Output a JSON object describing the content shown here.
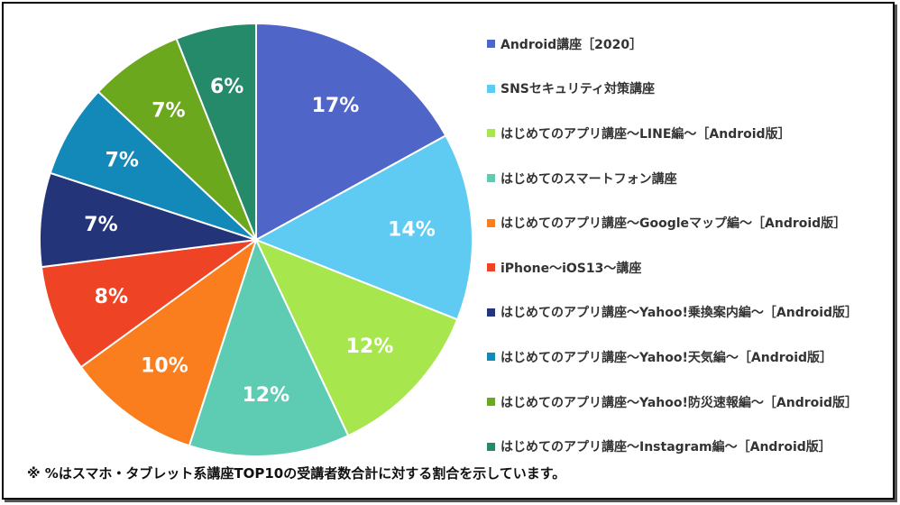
{
  "chart_data": {
    "type": "pie",
    "slices": [
      {
        "name": "Android講座［2020］",
        "value": 17,
        "label": "17%",
        "color": "#5065C8"
      },
      {
        "name": "SNSセキュリティ対策講座",
        "value": 14,
        "label": "14%",
        "color": "#5FCBF2"
      },
      {
        "name": "はじめてのアプリ講座～LINE編～［Android版］",
        "value": 12,
        "label": "12%",
        "color": "#A8E64E"
      },
      {
        "name": "はじめてのスマートフォン講座",
        "value": 12,
        "label": "12%",
        "color": "#5ECCB2"
      },
      {
        "name": "はじめてのアプリ講座～Googleマップ編～［Android版］",
        "value": 10,
        "label": "10%",
        "color": "#FA7D1E"
      },
      {
        "name": "iPhone～iOS13～講座",
        "value": 8,
        "label": "8%",
        "color": "#EE4325"
      },
      {
        "name": "はじめてのアプリ講座～Yahoo!乗換案内編～［Android版］",
        "value": 7,
        "label": "7%",
        "color": "#243478"
      },
      {
        "name": "はじめてのアプリ講座～Yahoo!天気編～［Android版］",
        "value": 7,
        "label": "7%",
        "color": "#1389B9"
      },
      {
        "name": "はじめてのアプリ講座～Yahoo!防災速報編～［Android版］",
        "value": 7,
        "label": "7%",
        "color": "#6BA81E"
      },
      {
        "name": "はじめてのアプリ講座～Instagram編～［Android版］",
        "value": 6,
        "label": "6%",
        "color": "#258A6A"
      }
    ],
    "legend_position": "right"
  },
  "footnote": "※ %はスマホ・タブレット系講座TOP10の受講者数合計に対する割合を示しています。"
}
